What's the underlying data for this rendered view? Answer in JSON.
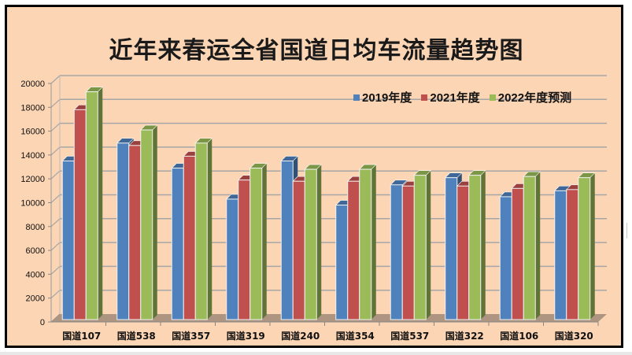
{
  "chart_data": {
    "type": "bar",
    "title": "近年来春运全省国道日均车流量趋势图",
    "xlabel": "",
    "ylabel": "",
    "ylim": [
      0,
      20000
    ],
    "yticks": [
      0,
      2000,
      4000,
      6000,
      8000,
      10000,
      12000,
      14000,
      16000,
      18000,
      20000
    ],
    "grid": true,
    "legend_position": "top-right",
    "style": "3d-clustered-column",
    "categories": [
      "国道107",
      "国道538",
      "国道357",
      "国道319",
      "国道240",
      "国道354",
      "国道537",
      "国道322",
      "国道106",
      "国道320"
    ],
    "series": [
      {
        "name": "2019年度",
        "color": "#4f81bd",
        "values": [
          13500,
          15000,
          12900,
          10300,
          13500,
          9800,
          11500,
          12100,
          10500,
          11000
        ]
      },
      {
        "name": "2021年度",
        "color": "#c0504d",
        "values": [
          17800,
          14800,
          13900,
          11900,
          11800,
          11800,
          11400,
          11400,
          11200,
          11100
        ]
      },
      {
        "name": "2022年度预测",
        "color": "#9bbb59",
        "values": [
          19300,
          16100,
          15000,
          12900,
          12800,
          12800,
          12300,
          12300,
          12200,
          12100
        ]
      }
    ]
  },
  "colors": {
    "background": "#fcd5b4",
    "frame": "#000000",
    "grid": "#a6a6a6",
    "floor": "#a08a78"
  }
}
